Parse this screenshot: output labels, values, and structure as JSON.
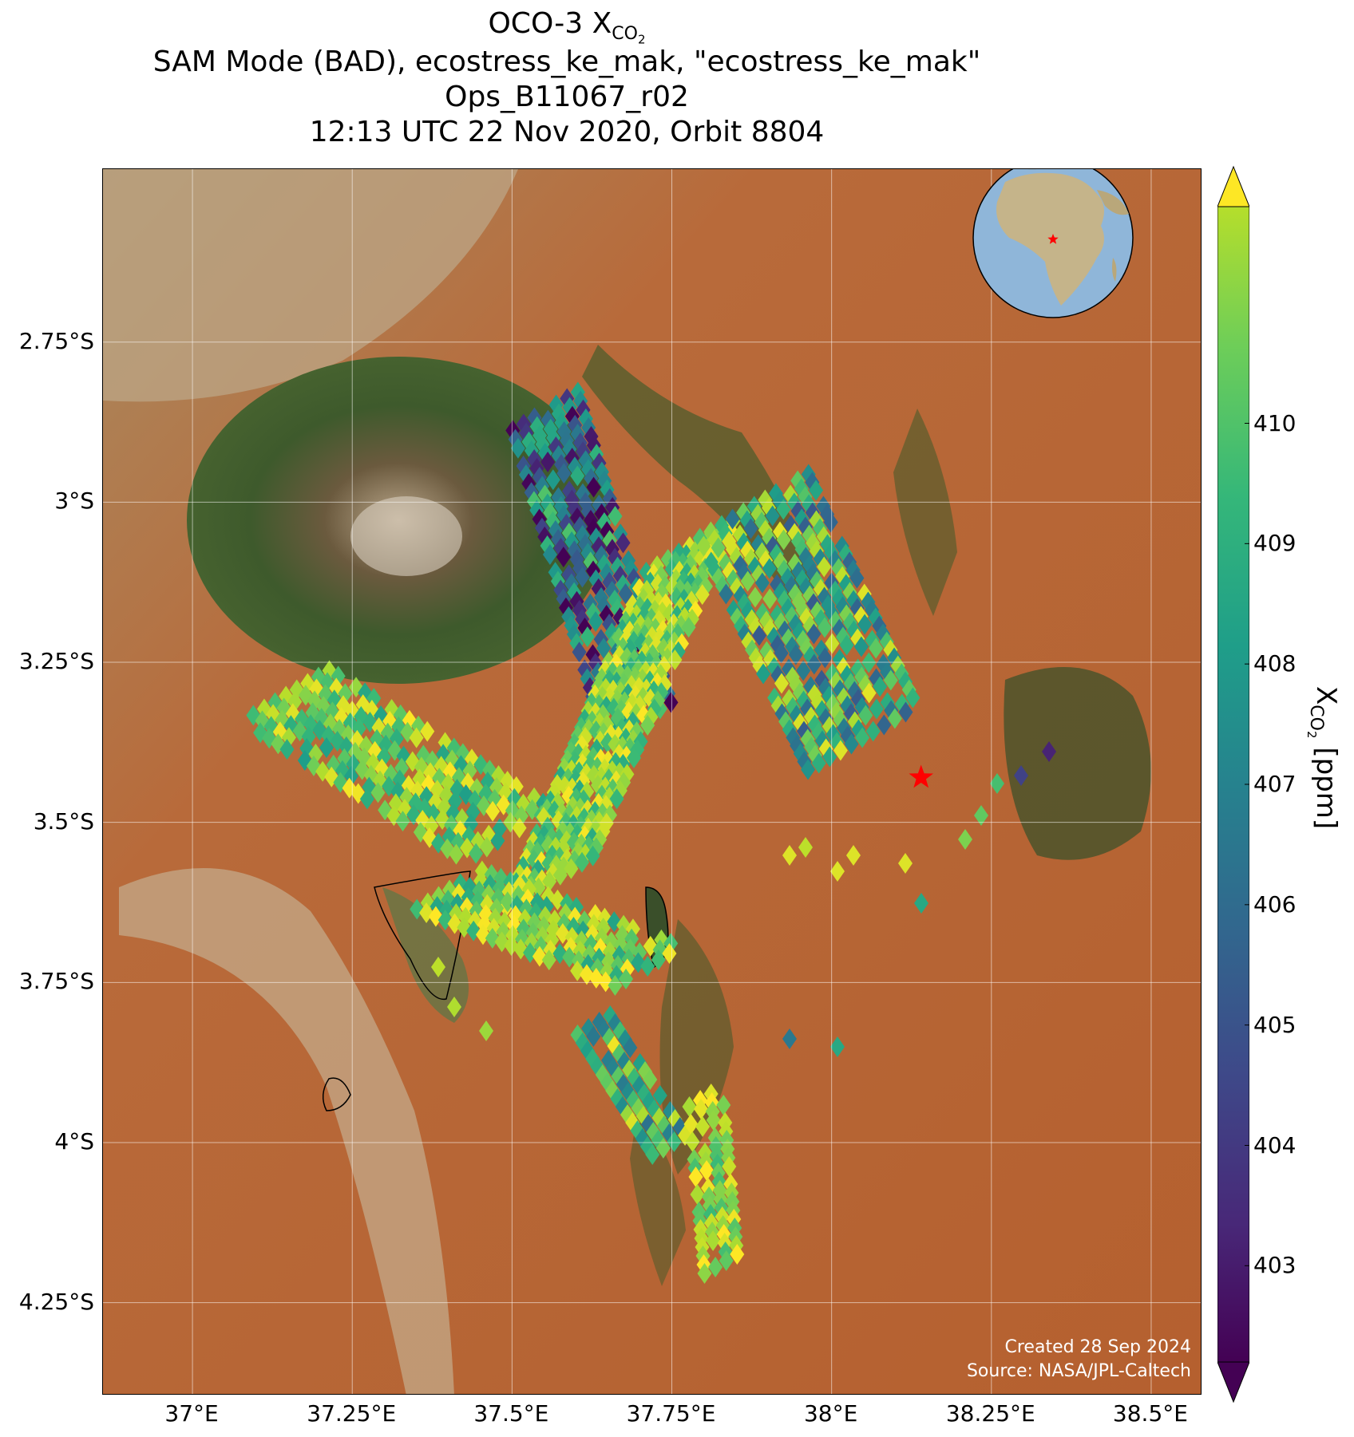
{
  "title": {
    "line1_prefix": "OCO-3 X",
    "line1_sub": "CO",
    "line1_sub2": "2",
    "line2": "SAM Mode (BAD), ecostress_ke_mak, \"ecostress_ke_mak\"",
    "line3": "Ops_B11067_r02",
    "line4": "12:13 UTC 22 Nov 2020, Orbit 8804"
  },
  "map": {
    "lon_range": [
      36.86,
      38.58
    ],
    "lat_range": [
      -4.395,
      -2.48
    ],
    "lat_ticks": [
      "2.75°S",
      "3°S",
      "3.25°S",
      "3.5°S",
      "3.75°S",
      "4°S",
      "4.25°S"
    ],
    "lat_values": [
      -2.75,
      -3.0,
      -3.25,
      -3.5,
      -3.75,
      -4.0,
      -4.25
    ],
    "lon_ticks": [
      "37°E",
      "37.25°E",
      "37.5°E",
      "37.75°E",
      "38°E",
      "38.25°E",
      "38.5°E"
    ],
    "lon_values": [
      37.0,
      37.25,
      37.5,
      37.75,
      38.0,
      38.25,
      38.5
    ],
    "target_marker": {
      "lon": 38.14,
      "lat": -3.43,
      "color": "#ff0000"
    },
    "gridlines": true,
    "colors": {
      "background_land": "#b8693a",
      "vegetation": "#3f5a2a",
      "gridline": "#ffffff"
    }
  },
  "inset_globe": {
    "marker_color": "#ff0000",
    "ocean_color": "#8fb6d9"
  },
  "credits": {
    "line1": "Created 28 Sep 2024",
    "line2": "Source: NASA/JPL-Caltech"
  },
  "colorbar": {
    "label_main": "X",
    "label_sub": "CO",
    "label_sub2": "2",
    "label_unit": " [ppm]",
    "min": 402.2,
    "max": 411.8,
    "ticks": [
      "403",
      "404",
      "405",
      "406",
      "407",
      "408",
      "409",
      "410"
    ],
    "tick_values": [
      403,
      404,
      405,
      406,
      407,
      408,
      409,
      410
    ],
    "colormap": "viridis",
    "extend": "both"
  }
}
